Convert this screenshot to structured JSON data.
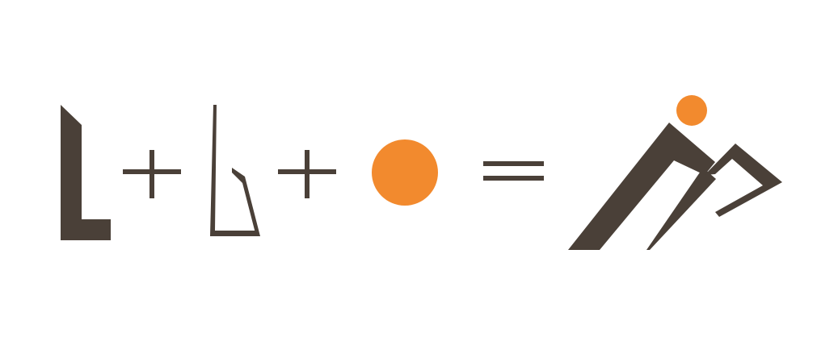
{
  "colors": {
    "background": "#ffffff",
    "dark_brown": "#4a4038",
    "orange": "#f28a2e"
  },
  "equation": {
    "parts": [
      {
        "role": "operand",
        "icon": "bold-l-shape-icon"
      },
      {
        "role": "operator",
        "icon": "plus-icon"
      },
      {
        "role": "operand",
        "icon": "outline-l-wedge-icon"
      },
      {
        "role": "operator",
        "icon": "plus-icon"
      },
      {
        "role": "operand",
        "icon": "orange-circle-icon"
      },
      {
        "role": "operator",
        "icon": "equals-icon"
      },
      {
        "role": "result",
        "icon": "mountain-climber-logo-icon"
      }
    ]
  }
}
